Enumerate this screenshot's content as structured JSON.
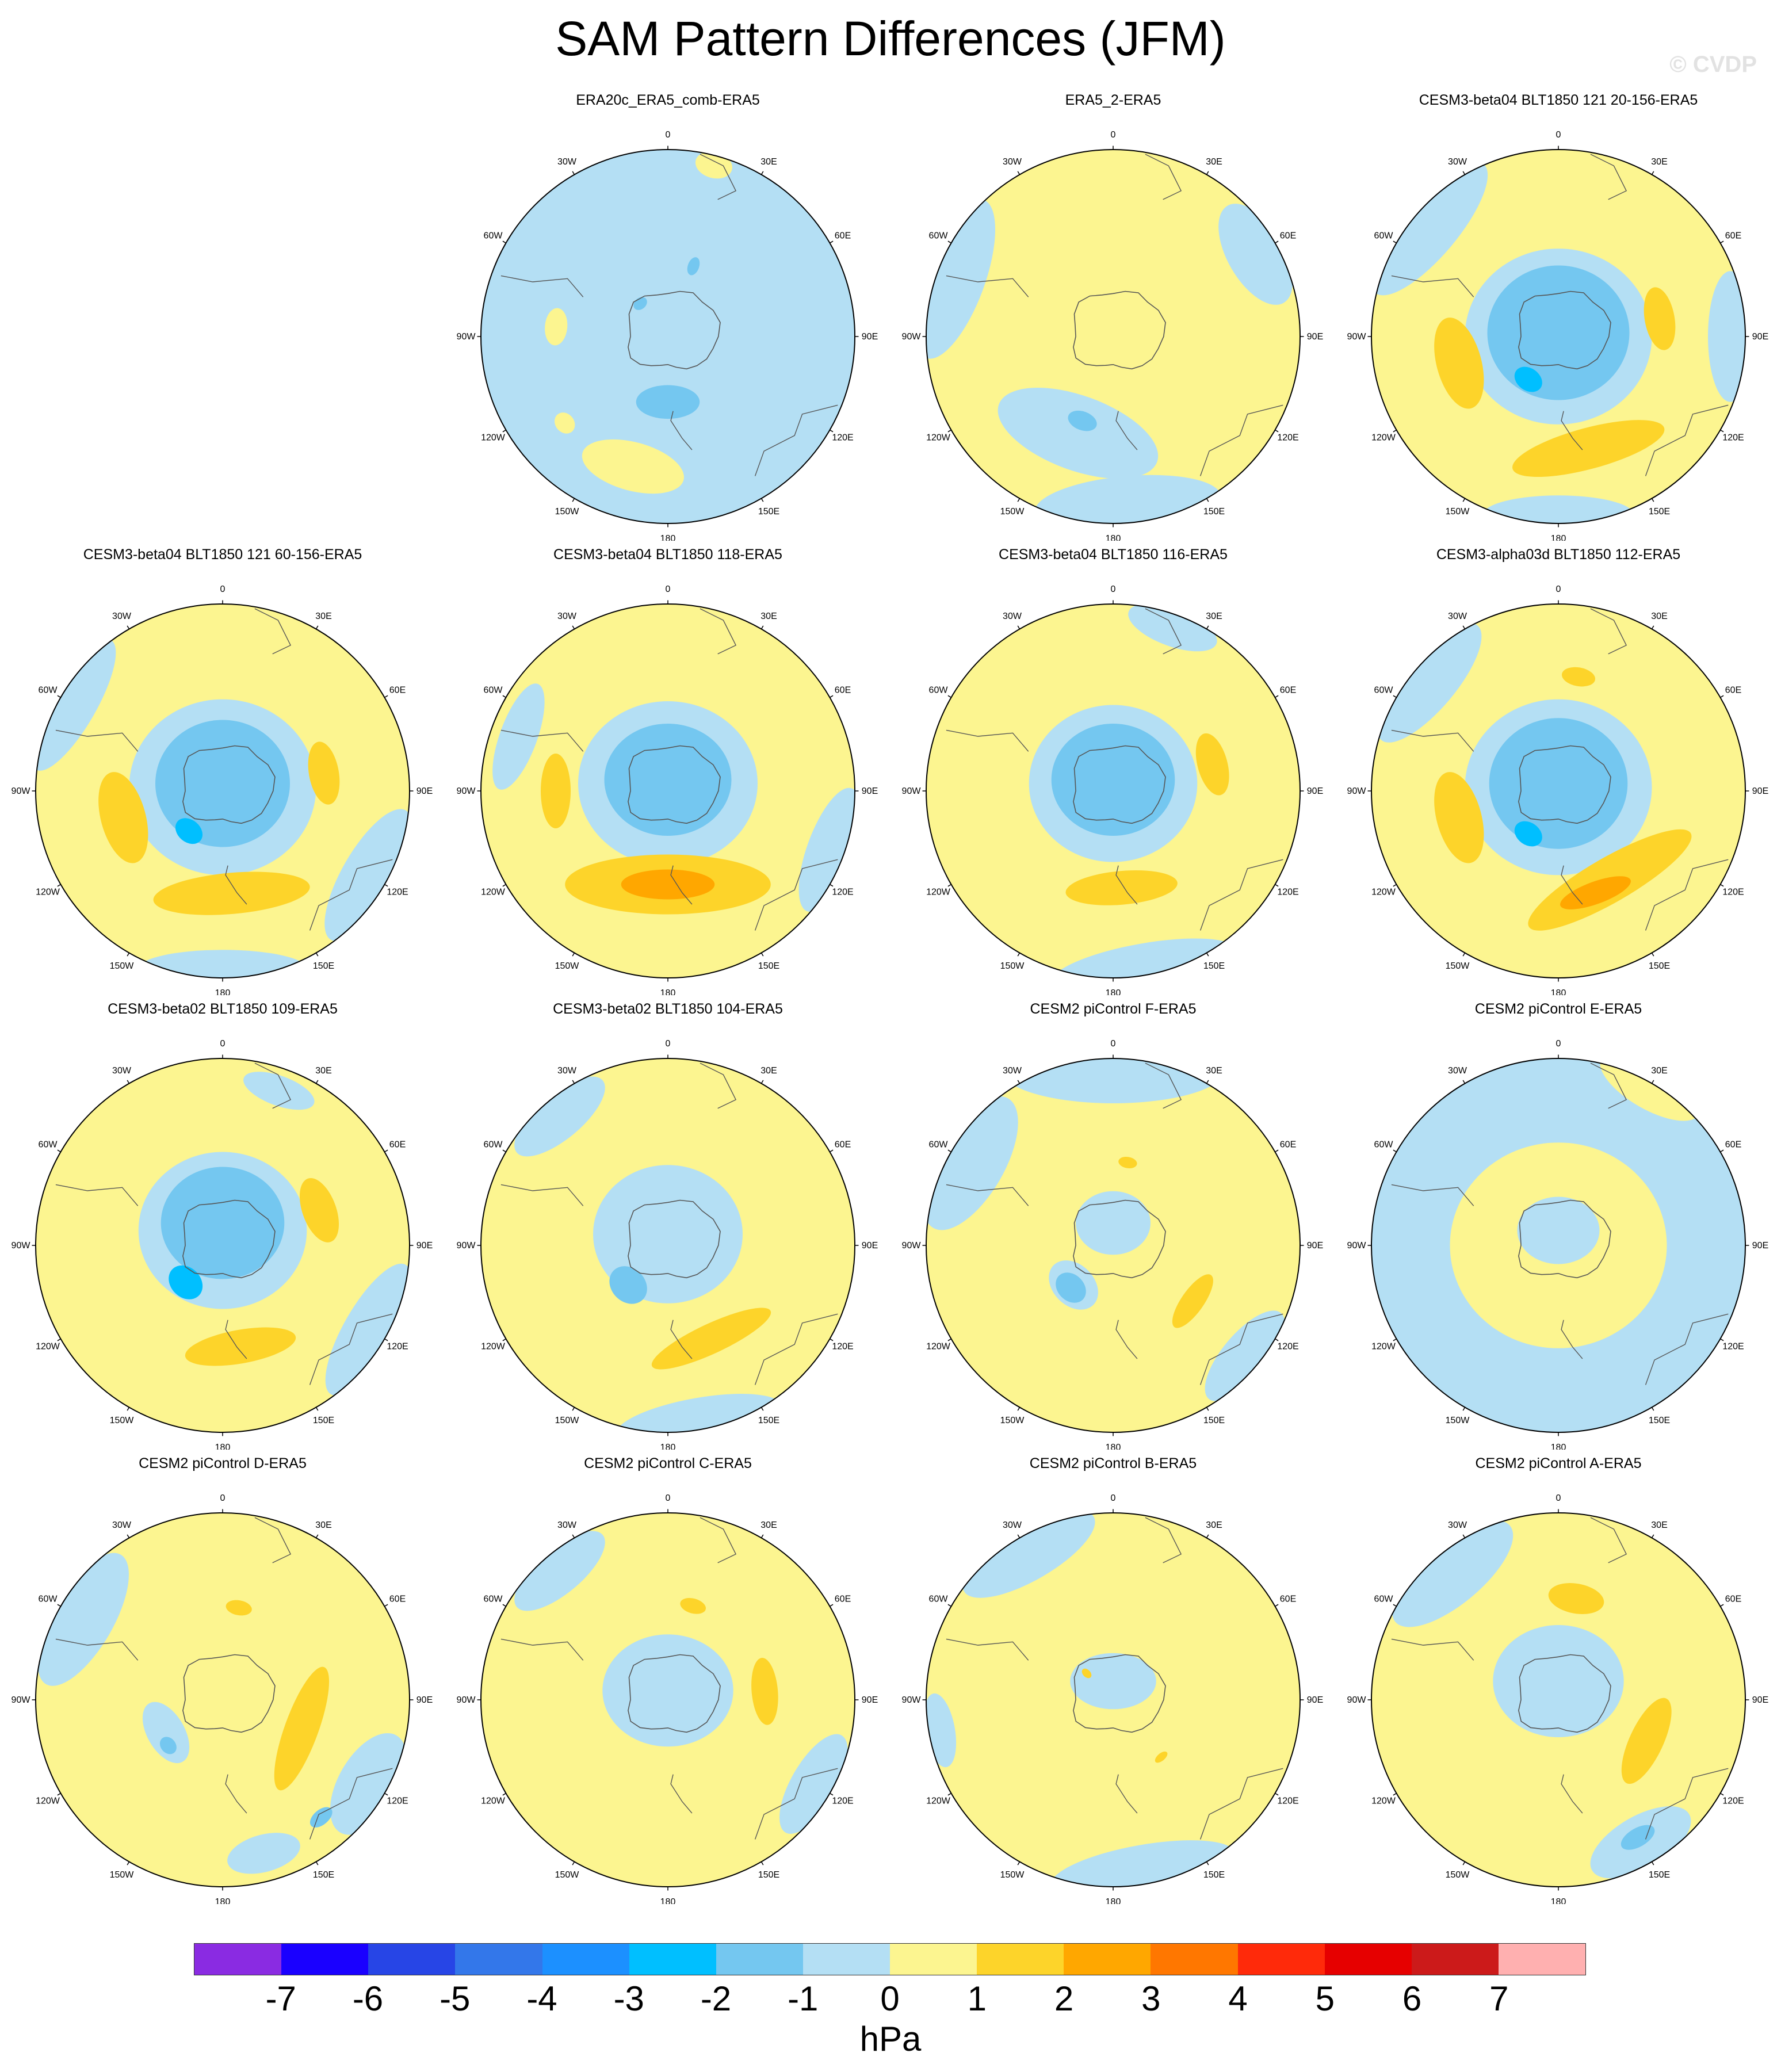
{
  "title": "SAM Pattern Differences (JFM)",
  "watermark": "© CVDP",
  "units": "hPa",
  "longitude_labels": [
    "0",
    "30E",
    "60E",
    "90E",
    "120E",
    "150E",
    "180",
    "150W",
    "120W",
    "90W",
    "60W",
    "30W"
  ],
  "colorbar": {
    "ticks": [
      "-7",
      "-6",
      "-5",
      "-4",
      "-3",
      "-2",
      "-1",
      "0",
      "1",
      "2",
      "3",
      "4",
      "5",
      "6",
      "7"
    ],
    "colors": [
      "#8a2be2",
      "#1a00ff",
      "#2745e6",
      "#3377ea",
      "#1c90ff",
      "#00bfff",
      "#74c7f0",
      "#b4dff4",
      "#fcf590",
      "#fdd42a",
      "#ffa700",
      "#ff7700",
      "#ff2a0a",
      "#e60000",
      "#cc1a1a",
      "#ffb0b0"
    ]
  },
  "colors": {
    "neg1": "#b4dff4",
    "neg2": "#74c7f0",
    "neg3": "#00bfff",
    "pos1": "#fcf590",
    "pos2": "#fdd42a",
    "pos3": "#ffa700",
    "coast": "#555555"
  },
  "panels": [
    {
      "title": "ERA20c_ERA5_comb-ERA5",
      "base": "neg",
      "features": [
        {
          "lon": 195,
          "r": 0.72,
          "a": 0.28,
          "b": 0.13,
          "rot": 0,
          "level": 1
        },
        {
          "lon": 15,
          "r": 0.95,
          "a": 0.1,
          "b": 0.07,
          "rot": 0,
          "level": 1
        },
        {
          "lon": 275,
          "r": 0.6,
          "a": 0.1,
          "b": 0.06,
          "rot": 0,
          "level": 1
        },
        {
          "lon": 230,
          "r": 0.72,
          "a": 0.06,
          "b": 0.05,
          "rot": 0,
          "level": 1
        },
        {
          "lon": 180,
          "r": 0.35,
          "a": 0.17,
          "b": 0.09,
          "rot": 0,
          "level": -2
        },
        {
          "lon": 20,
          "r": 0.4,
          "a": 0.03,
          "b": 0.05,
          "rot": 0,
          "level": -2
        },
        {
          "lon": 320,
          "r": 0.23,
          "a": 0.04,
          "b": 0.03,
          "rot": 0,
          "level": -2
        }
      ]
    },
    {
      "title": "ERA5_2-ERA5",
      "base": "pos",
      "features": [
        {
          "lon": 200,
          "r": 0.55,
          "a": 0.45,
          "b": 0.2,
          "rot": 0,
          "level": -1
        },
        {
          "lon": 290,
          "r": 0.9,
          "a": 0.45,
          "b": 0.16,
          "rot": 0,
          "level": -1
        },
        {
          "lon": 175,
          "r": 0.9,
          "a": 0.5,
          "b": 0.15,
          "rot": 0,
          "level": -1
        },
        {
          "lon": 60,
          "r": 0.88,
          "a": 0.3,
          "b": 0.15,
          "rot": 0,
          "level": -1
        },
        {
          "lon": 200,
          "r": 0.48,
          "a": 0.08,
          "b": 0.05,
          "rot": 0,
          "level": -2
        }
      ]
    },
    {
      "title": "CESM3-beta04 BLT1850 121 20-156-ERA5",
      "base": "pos",
      "features": [
        {
          "lon": 310,
          "r": 0.9,
          "a": 0.45,
          "b": 0.15,
          "rot": 0,
          "level": -1
        },
        {
          "lon": 90,
          "r": 0.92,
          "a": 0.35,
          "b": 0.12,
          "rot": 0,
          "level": -1
        },
        {
          "lon": 180,
          "r": 0.95,
          "a": 0.4,
          "b": 0.1,
          "rot": 0,
          "level": -1
        },
        {
          "lon": 0,
          "r": 0.0,
          "a": 0.5,
          "b": 0.47,
          "rot": 0,
          "level": -1
        },
        {
          "lon": 0,
          "r": 0.02,
          "a": 0.38,
          "b": 0.36,
          "rot": 0,
          "level": -2
        },
        {
          "lon": 215,
          "r": 0.28,
          "a": 0.08,
          "b": 0.06,
          "rot": 0,
          "level": -3
        },
        {
          "lon": 255,
          "r": 0.55,
          "a": 0.25,
          "b": 0.12,
          "rot": 0,
          "level": 2
        },
        {
          "lon": 165,
          "r": 0.62,
          "a": 0.42,
          "b": 0.11,
          "rot": 0,
          "level": 2
        },
        {
          "lon": 80,
          "r": 0.55,
          "a": 0.17,
          "b": 0.08,
          "rot": 0,
          "level": 2
        }
      ]
    },
    {
      "title": "CESM3-beta04 BLT1850 121 60-156-ERA5",
      "base": "pos",
      "features": [
        {
          "lon": 300,
          "r": 0.92,
          "a": 0.4,
          "b": 0.12,
          "rot": 0,
          "level": -1
        },
        {
          "lon": 120,
          "r": 0.9,
          "a": 0.4,
          "b": 0.14,
          "rot": 0,
          "level": -1
        },
        {
          "lon": 180,
          "r": 0.95,
          "a": 0.45,
          "b": 0.1,
          "rot": 0,
          "level": -1
        },
        {
          "lon": 0,
          "r": 0.02,
          "a": 0.5,
          "b": 0.47,
          "rot": 0,
          "level": -1
        },
        {
          "lon": 0,
          "r": 0.04,
          "a": 0.36,
          "b": 0.34,
          "rot": 0,
          "level": -2
        },
        {
          "lon": 220,
          "r": 0.28,
          "a": 0.08,
          "b": 0.06,
          "rot": 0,
          "level": -3
        },
        {
          "lon": 255,
          "r": 0.55,
          "a": 0.25,
          "b": 0.12,
          "rot": 0,
          "level": 2
        },
        {
          "lon": 175,
          "r": 0.55,
          "a": 0.42,
          "b": 0.11,
          "rot": 0,
          "level": 2
        },
        {
          "lon": 80,
          "r": 0.55,
          "a": 0.17,
          "b": 0.08,
          "rot": 0,
          "level": 2
        }
      ]
    },
    {
      "title": "CESM3-beta04 BLT1850 118-ERA5",
      "base": "pos",
      "features": [
        {
          "lon": 290,
          "r": 0.85,
          "a": 0.3,
          "b": 0.1,
          "rot": 0,
          "level": -1
        },
        {
          "lon": 110,
          "r": 0.92,
          "a": 0.35,
          "b": 0.12,
          "rot": 0,
          "level": -1
        },
        {
          "lon": 0,
          "r": 0.04,
          "a": 0.48,
          "b": 0.44,
          "rot": 0,
          "level": -1
        },
        {
          "lon": 0,
          "r": 0.06,
          "a": 0.34,
          "b": 0.3,
          "rot": 0,
          "level": -2
        },
        {
          "lon": 180,
          "r": 0.5,
          "a": 0.55,
          "b": 0.16,
          "rot": 0,
          "level": 2
        },
        {
          "lon": 180,
          "r": 0.5,
          "a": 0.25,
          "b": 0.08,
          "rot": 0,
          "level": 3
        },
        {
          "lon": 270,
          "r": 0.6,
          "a": 0.2,
          "b": 0.08,
          "rot": 0,
          "level": 2
        }
      ]
    },
    {
      "title": "CESM3-beta04 BLT1850 116-ERA5",
      "base": "pos",
      "features": [
        {
          "lon": 170,
          "r": 0.95,
          "a": 0.5,
          "b": 0.12,
          "rot": 0,
          "level": -1
        },
        {
          "lon": 20,
          "r": 0.93,
          "a": 0.25,
          "b": 0.1,
          "rot": 0,
          "level": -1
        },
        {
          "lon": 0,
          "r": 0.04,
          "a": 0.45,
          "b": 0.42,
          "rot": 0,
          "level": -1
        },
        {
          "lon": 0,
          "r": 0.06,
          "a": 0.33,
          "b": 0.3,
          "rot": 0,
          "level": -2
        },
        {
          "lon": 175,
          "r": 0.52,
          "a": 0.3,
          "b": 0.09,
          "rot": 0,
          "level": 2
        },
        {
          "lon": 75,
          "r": 0.55,
          "a": 0.17,
          "b": 0.08,
          "rot": 0,
          "level": 2
        }
      ]
    },
    {
      "title": "CESM3-alpha03d BLT1850 112-ERA5",
      "base": "pos",
      "features": [
        {
          "lon": 310,
          "r": 0.9,
          "a": 0.4,
          "b": 0.14,
          "rot": 0,
          "level": -1
        },
        {
          "lon": 0,
          "r": 0.02,
          "a": 0.5,
          "b": 0.47,
          "rot": 0,
          "level": -1
        },
        {
          "lon": 0,
          "r": 0.04,
          "a": 0.37,
          "b": 0.35,
          "rot": 0,
          "level": -2
        },
        {
          "lon": 215,
          "r": 0.28,
          "a": 0.08,
          "b": 0.06,
          "rot": 0,
          "level": -3
        },
        {
          "lon": 255,
          "r": 0.55,
          "a": 0.25,
          "b": 0.12,
          "rot": 0,
          "level": 2
        },
        {
          "lon": 150,
          "r": 0.55,
          "a": 0.5,
          "b": 0.12,
          "rot": 0,
          "level": 2
        },
        {
          "lon": 160,
          "r": 0.58,
          "a": 0.2,
          "b": 0.06,
          "rot": 0,
          "level": 3
        },
        {
          "lon": 10,
          "r": 0.62,
          "a": 0.09,
          "b": 0.05,
          "rot": 0,
          "level": 2
        }
      ]
    },
    {
      "title": "CESM3-beta02 BLT1850 109-ERA5",
      "base": "pos",
      "features": [
        {
          "lon": 120,
          "r": 0.9,
          "a": 0.4,
          "b": 0.13,
          "rot": 0,
          "level": -1
        },
        {
          "lon": 20,
          "r": 0.88,
          "a": 0.2,
          "b": 0.08,
          "rot": 0,
          "level": -1
        },
        {
          "lon": 0,
          "r": 0.08,
          "a": 0.45,
          "b": 0.42,
          "rot": 0,
          "level": -1
        },
        {
          "lon": 0,
          "r": 0.12,
          "a": 0.33,
          "b": 0.3,
          "rot": 0,
          "level": -2
        },
        {
          "lon": 225,
          "r": 0.28,
          "a": 0.1,
          "b": 0.08,
          "rot": 0,
          "level": -3
        },
        {
          "lon": 170,
          "r": 0.55,
          "a": 0.3,
          "b": 0.09,
          "rot": 0,
          "level": 2
        },
        {
          "lon": 70,
          "r": 0.55,
          "a": 0.18,
          "b": 0.09,
          "rot": 0,
          "level": 2
        }
      ]
    },
    {
      "title": "CESM3-beta02 BLT1850 104-ERA5",
      "base": "pos",
      "features": [
        {
          "lon": 170,
          "r": 0.95,
          "a": 0.45,
          "b": 0.12,
          "rot": 0,
          "level": -1
        },
        {
          "lon": 320,
          "r": 0.9,
          "a": 0.3,
          "b": 0.12,
          "rot": 0,
          "level": -1
        },
        {
          "lon": 0,
          "r": 0.06,
          "a": 0.4,
          "b": 0.37,
          "rot": 0,
          "level": -1
        },
        {
          "lon": 225,
          "r": 0.3,
          "a": 0.11,
          "b": 0.09,
          "rot": 0,
          "level": -2
        },
        {
          "lon": 155,
          "r": 0.55,
          "a": 0.35,
          "b": 0.08,
          "rot": 0,
          "level": 2
        }
      ]
    },
    {
      "title": "CESM2 piControl F-ERA5",
      "base": "pos",
      "features": [
        {
          "lon": 0,
          "r": 0.94,
          "a": 0.6,
          "b": 0.18,
          "rot": 0,
          "level": -1
        },
        {
          "lon": 300,
          "r": 0.88,
          "a": 0.4,
          "b": 0.18,
          "rot": 0,
          "level": -1
        },
        {
          "lon": 130,
          "r": 0.92,
          "a": 0.3,
          "b": 0.12,
          "rot": 0,
          "level": -1
        },
        {
          "lon": 0,
          "r": 0.12,
          "a": 0.2,
          "b": 0.17,
          "rot": 0,
          "level": -1
        },
        {
          "lon": 225,
          "r": 0.3,
          "a": 0.15,
          "b": 0.11,
          "rot": 0,
          "level": -1
        },
        {
          "lon": 225,
          "r": 0.32,
          "a": 0.09,
          "b": 0.07,
          "rot": 0,
          "level": -2
        },
        {
          "lon": 125,
          "r": 0.52,
          "a": 0.17,
          "b": 0.06,
          "rot": 0,
          "level": 2
        },
        {
          "lon": 10,
          "r": 0.45,
          "a": 0.05,
          "b": 0.03,
          "rot": 0,
          "level": 2
        }
      ]
    },
    {
      "title": "CESM2 piControl E-ERA5",
      "base": "neg",
      "features": [
        {
          "lon": 0,
          "r": 0.0,
          "a": 0.58,
          "b": 0.55,
          "rot": 0,
          "level": 1
        },
        {
          "lon": 0,
          "r": 0.08,
          "a": 0.22,
          "b": 0.18,
          "rot": 0,
          "level": -1
        },
        {
          "lon": 30,
          "r": 0.98,
          "a": 0.3,
          "b": 0.12,
          "rot": 0,
          "level": 1
        }
      ]
    },
    {
      "title": "CESM2 piControl D-ERA5",
      "base": "pos",
      "features": [
        {
          "lon": 300,
          "r": 0.86,
          "a": 0.4,
          "b": 0.16,
          "rot": 0,
          "level": -1
        },
        {
          "lon": 120,
          "r": 0.9,
          "a": 0.3,
          "b": 0.16,
          "rot": 0,
          "level": -1
        },
        {
          "lon": 165,
          "r": 0.85,
          "a": 0.2,
          "b": 0.1,
          "rot": 0,
          "level": -1
        },
        {
          "lon": 240,
          "r": 0.35,
          "a": 0.18,
          "b": 0.1,
          "rot": 0,
          "level": -1
        },
        {
          "lon": 230,
          "r": 0.38,
          "a": 0.05,
          "b": 0.04,
          "rot": 0,
          "level": -2
        },
        {
          "lon": 140,
          "r": 0.82,
          "a": 0.07,
          "b": 0.04,
          "rot": 0,
          "level": -2
        },
        {
          "lon": 110,
          "r": 0.45,
          "a": 0.35,
          "b": 0.09,
          "rot": 0,
          "level": 2
        },
        {
          "lon": 10,
          "r": 0.5,
          "a": 0.07,
          "b": 0.04,
          "rot": 0,
          "level": 2
        }
      ]
    },
    {
      "title": "CESM2 piControl C-ERA5",
      "base": "pos",
      "features": [
        {
          "lon": 0,
          "r": 0.05,
          "a": 0.35,
          "b": 0.3,
          "rot": 0,
          "level": -1
        },
        {
          "lon": 120,
          "r": 0.9,
          "a": 0.3,
          "b": 0.12,
          "rot": 0,
          "level": -1
        },
        {
          "lon": 320,
          "r": 0.9,
          "a": 0.3,
          "b": 0.12,
          "rot": 0,
          "level": -1
        },
        {
          "lon": 85,
          "r": 0.52,
          "a": 0.18,
          "b": 0.07,
          "rot": 0,
          "level": 2
        },
        {
          "lon": 15,
          "r": 0.52,
          "a": 0.07,
          "b": 0.04,
          "rot": 0,
          "level": 2
        }
      ]
    },
    {
      "title": "CESM2 piControl B-ERA5",
      "base": "pos",
      "features": [
        {
          "lon": 170,
          "r": 0.92,
          "a": 0.5,
          "b": 0.13,
          "rot": 0,
          "level": -1
        },
        {
          "lon": 330,
          "r": 0.9,
          "a": 0.4,
          "b": 0.14,
          "rot": 0,
          "level": -1
        },
        {
          "lon": 260,
          "r": 0.94,
          "a": 0.2,
          "b": 0.08,
          "rot": 0,
          "level": -1
        },
        {
          "lon": 0,
          "r": 0.1,
          "a": 0.23,
          "b": 0.15,
          "rot": 0,
          "level": -1
        },
        {
          "lon": 315,
          "r": 0.2,
          "a": 0.02,
          "b": 0.03,
          "rot": 0,
          "level": 2
        },
        {
          "lon": 140,
          "r": 0.4,
          "a": 0.04,
          "b": 0.02,
          "rot": 0,
          "level": 2
        }
      ]
    },
    {
      "title": "CESM2 piControl A-ERA5",
      "base": "pos",
      "features": [
        {
          "lon": 320,
          "r": 0.88,
          "a": 0.4,
          "b": 0.16,
          "rot": 0,
          "level": -1
        },
        {
          "lon": 0,
          "r": 0.1,
          "a": 0.35,
          "b": 0.3,
          "rot": 0,
          "level": -1
        },
        {
          "lon": 150,
          "r": 0.88,
          "a": 0.3,
          "b": 0.14,
          "rot": 0,
          "level": -1
        },
        {
          "lon": 150,
          "r": 0.85,
          "a": 0.1,
          "b": 0.05,
          "rot": 0,
          "level": -2
        },
        {
          "lon": 10,
          "r": 0.55,
          "a": 0.15,
          "b": 0.08,
          "rot": 0,
          "level": 2
        },
        {
          "lon": 115,
          "r": 0.52,
          "a": 0.25,
          "b": 0.09,
          "rot": 0,
          "level": 2
        }
      ]
    }
  ]
}
